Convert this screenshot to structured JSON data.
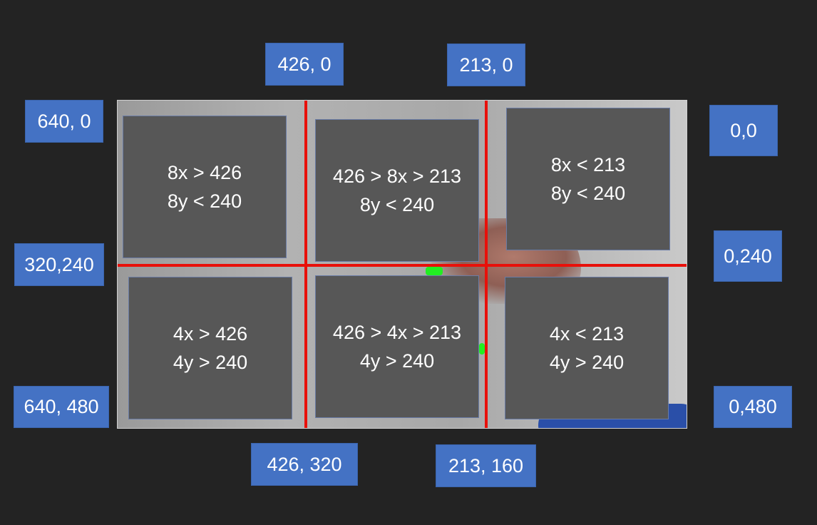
{
  "corner_labels": {
    "top_426": "426, 0",
    "top_213": "213, 0",
    "top_left": "640, 0",
    "top_right": "0,0",
    "mid_left": "320,240",
    "mid_right": "0,240",
    "bottom_left": "640, 480",
    "bottom_right": "0,480",
    "bottom_426": "426, 320",
    "bottom_213": "213, 160"
  },
  "cells": {
    "top_left": {
      "line1": "8x > 426",
      "line2": "8y < 240"
    },
    "top_middle": {
      "line1": "426 > 8x > 213",
      "line2": "8y < 240"
    },
    "top_right": {
      "line1": "8x < 213",
      "line2": "8y < 240"
    },
    "bottom_left": {
      "line1": "4x > 426",
      "line2": "4y > 240"
    },
    "bottom_middle": {
      "line1": "426 > 4x > 213",
      "line2": "4y > 240"
    },
    "bottom_right": {
      "line1": "4x < 213",
      "line2": "4y > 240"
    }
  },
  "colors": {
    "label_bg": "#4472c4",
    "cell_bg": "#575757",
    "grid_line": "#e8100a",
    "marker": "#22ee22"
  }
}
